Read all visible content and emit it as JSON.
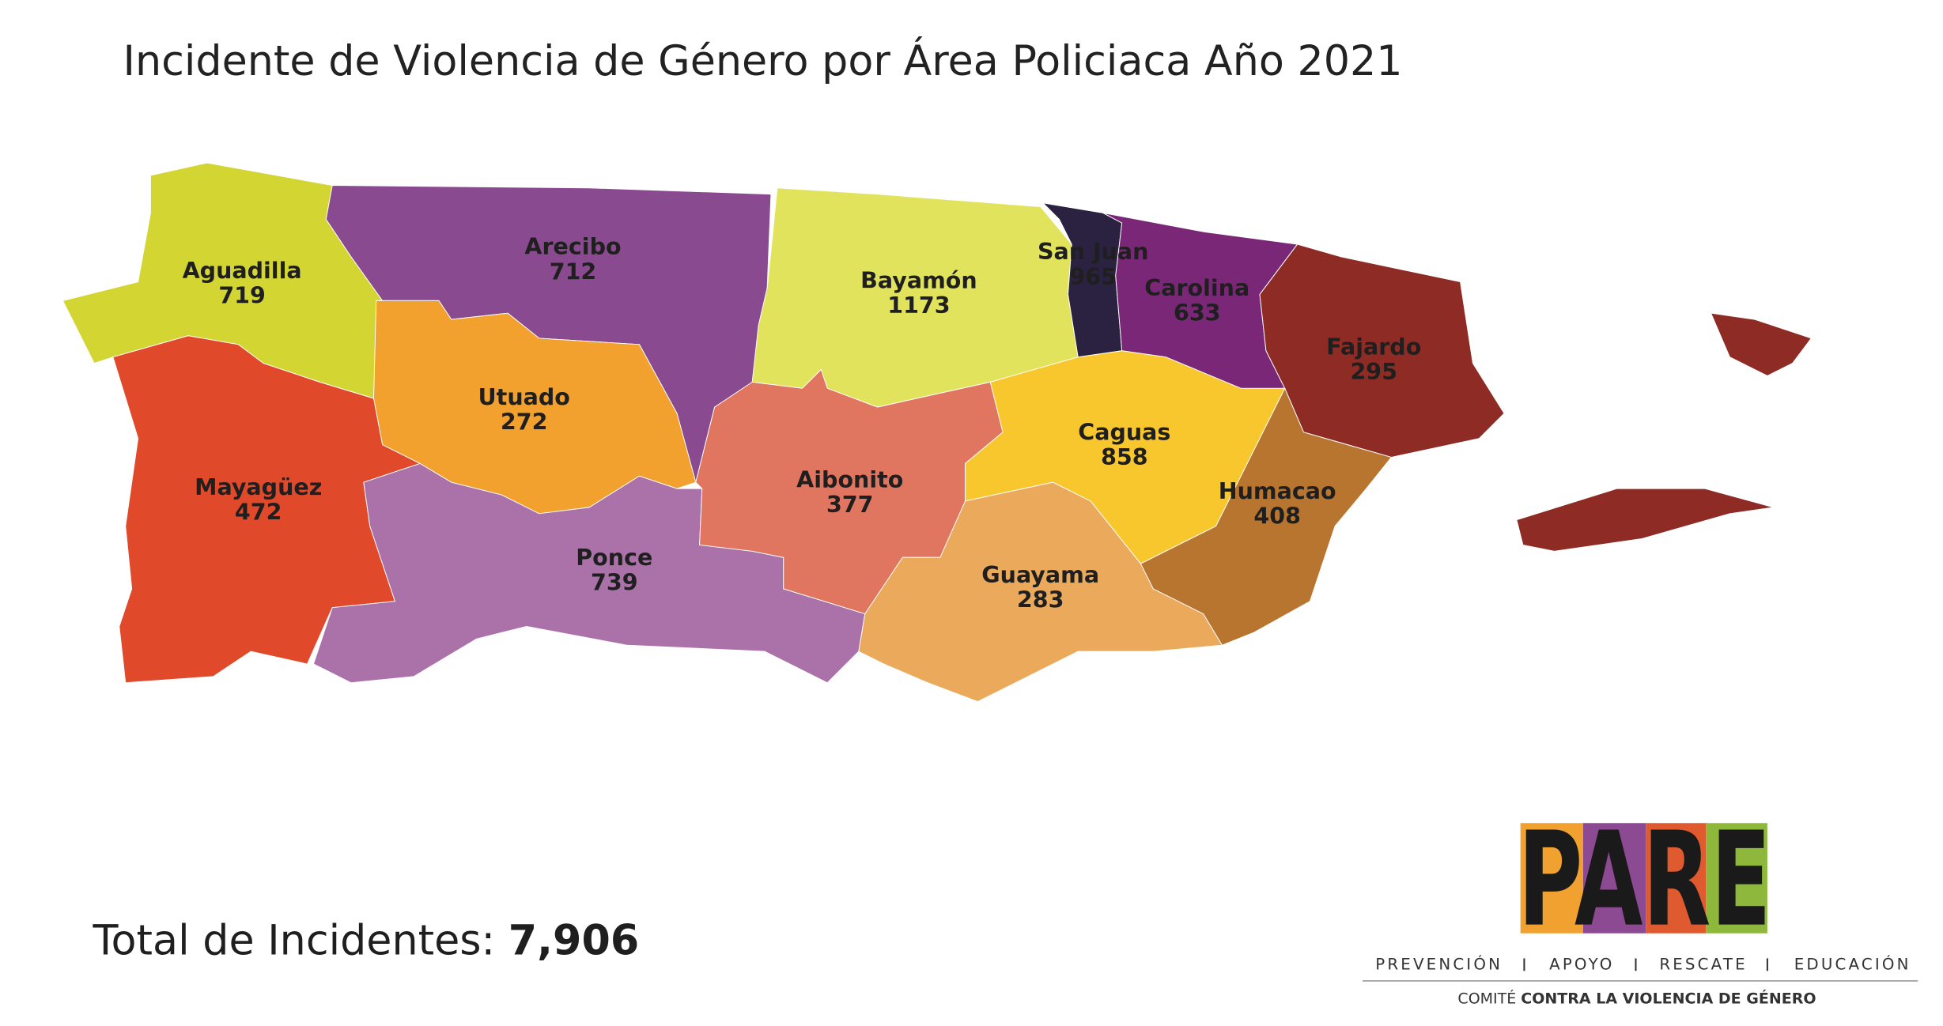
{
  "title": "Incidente de Violencia de Género por Área Policiaca Año 2021",
  "regions": [
    {
      "name": "Aguadilla",
      "value": "719",
      "color": "#d3d533"
    },
    {
      "name": "Arecibo",
      "value": "712",
      "color": "#8a4a8f"
    },
    {
      "name": "Bayamón",
      "value": "1173",
      "color": "#e2e35c"
    },
    {
      "name": "San Juan",
      "value": "965",
      "color": "#2b2140"
    },
    {
      "name": "Carolina",
      "value": "633",
      "color": "#7a2777"
    },
    {
      "name": "Fajardo",
      "value": "295",
      "color": "#8e2b25"
    },
    {
      "name": "Utuado",
      "value": "272",
      "color": "#f2a02e"
    },
    {
      "name": "Mayagüez",
      "value": "472",
      "color": "#e04a2b"
    },
    {
      "name": "Ponce",
      "value": "739",
      "color": "#ab72a9"
    },
    {
      "name": "Aibonito",
      "value": "377",
      "color": "#e07560"
    },
    {
      "name": "Caguas",
      "value": "858",
      "color": "#f8c72e"
    },
    {
      "name": "Guayama",
      "value": "283",
      "color": "#eaa95b"
    },
    {
      "name": "Humacao",
      "value": "408",
      "color": "#b87530"
    }
  ],
  "total": {
    "label": "Total de Incidentes:",
    "value": "7,906"
  },
  "logo": {
    "name": "PARE",
    "tagline": [
      "PREVENCIÓN",
      "APOYO",
      "RESCATE",
      "EDUCACIÓN"
    ],
    "committee": "COMITÉ",
    "committee_rest": "CONTRA LA VIOLENCIA DE GÉNERO"
  }
}
